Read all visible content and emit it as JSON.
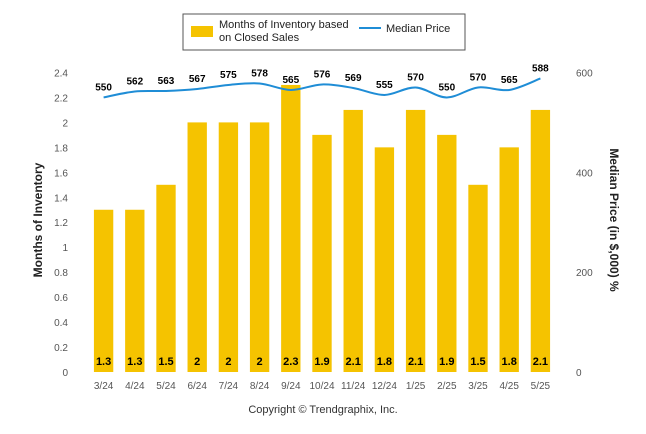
{
  "chart_data": {
    "type": "bar",
    "categories": [
      "3/24",
      "4/24",
      "5/24",
      "6/24",
      "7/24",
      "8/24",
      "9/24",
      "10/24",
      "11/24",
      "12/24",
      "1/25",
      "2/25",
      "3/25",
      "4/25",
      "5/25"
    ],
    "series": [
      {
        "name": "Months of Inventory based on Closed Sales",
        "type": "bar",
        "axis": "left",
        "color": "#F5C300",
        "values": [
          1.3,
          1.3,
          1.5,
          2,
          2,
          2,
          2.3,
          1.9,
          2.1,
          1.8,
          2.1,
          1.9,
          1.5,
          1.8,
          2.1
        ],
        "value_labels": [
          "1.3",
          "1.3",
          "1.5",
          "2",
          "2",
          "2",
          "2.3",
          "1.9",
          "2.1",
          "1.8",
          "2.1",
          "1.9",
          "1.5",
          "1.8",
          "2.1"
        ]
      },
      {
        "name": "Median Price",
        "type": "line",
        "axis": "right",
        "color": "#1F8DD6",
        "values": [
          550,
          562,
          563,
          567,
          575,
          578,
          565,
          576,
          569,
          555,
          570,
          550,
          570,
          565,
          588
        ],
        "value_labels": [
          "550",
          "562",
          "563",
          "567",
          "575",
          "578",
          "565",
          "576",
          "569",
          "555",
          "570",
          "550",
          "570",
          "565",
          "588"
        ]
      }
    ],
    "ylabel_left": "Months of Inventory",
    "ylabel_right": "Median Price (in $,000) %",
    "ylim_left": [
      0,
      2.5
    ],
    "yticks_left": [
      "0",
      "0.2",
      "0.4",
      "0.6",
      "0.8",
      "1",
      "1.2",
      "1.4",
      "1.6",
      "1.8",
      "2",
      "2.2",
      "2.4"
    ],
    "ylim_right": [
      0,
      625
    ],
    "yticks_right": [
      "0",
      "200",
      "400",
      "600"
    ],
    "grid": false,
    "legend_position": "top-center",
    "legend": [
      {
        "label_line1": "Months of Inventory based",
        "label_line2": "on Closed Sales",
        "marker": "box",
        "color": "#F5C300"
      },
      {
        "label_line1": "Median Price",
        "label_line2": "",
        "marker": "line",
        "color": "#1F8DD6"
      }
    ]
  },
  "footer": {
    "copyright": "Copyright © Trendgraphix, Inc."
  }
}
